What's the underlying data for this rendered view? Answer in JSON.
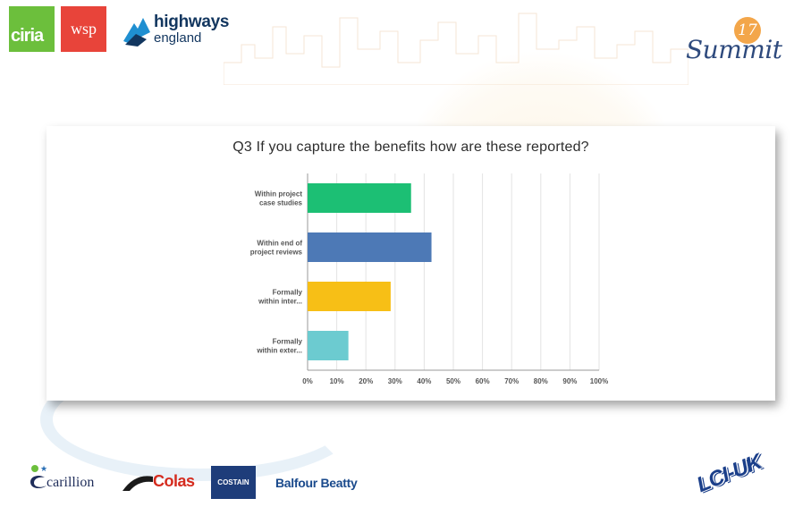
{
  "header": {
    "logos": {
      "ciria": "ciria",
      "wsp": "wsp",
      "highways_line1": "highways",
      "highways_line2": "england",
      "summit_number": "17",
      "summit_text": "Summit"
    }
  },
  "colors": {
    "ciria": "#6cbf3c",
    "wsp": "#e8443a",
    "highways": "#12365f",
    "summit_number_bg": "#f3a64a",
    "summit_text": "#2e4a7d",
    "costain": "#1e3d7a",
    "colas": "#d52b1e",
    "balfour": "#1a4a8c",
    "lci": "#1b3f8a"
  },
  "chart_data": {
    "type": "bar",
    "orientation": "horizontal",
    "title": "Q3 If you capture the benefits how are these reported?",
    "categories": [
      [
        "Within project",
        "case studies"
      ],
      [
        "Within end of",
        "project reviews"
      ],
      [
        "Formally",
        "within inter..."
      ],
      [
        "Formally",
        "within exter..."
      ]
    ],
    "values": [
      35.5,
      42.5,
      28.5,
      14
    ],
    "bar_colors": [
      "#1cbf74",
      "#4d79b6",
      "#f7bf16",
      "#6ccbd0"
    ],
    "xlim": [
      0,
      100
    ],
    "xticks": [
      "0%",
      "10%",
      "20%",
      "30%",
      "40%",
      "50%",
      "60%",
      "70%",
      "80%",
      "90%",
      "100%"
    ],
    "grid": true
  },
  "footer": {
    "logos": {
      "carillion": "carillion",
      "colas": "Colas",
      "costain": "COSTAIN",
      "balfour": "Balfour Beatty",
      "lci": "LCI-UK"
    }
  }
}
